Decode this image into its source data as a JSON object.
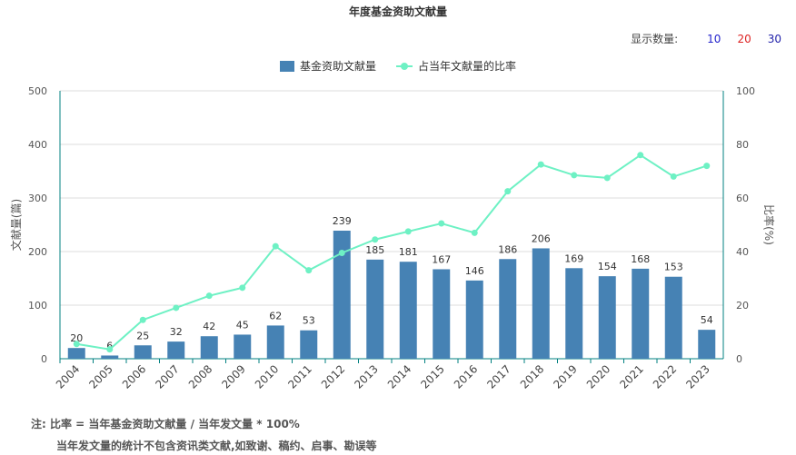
{
  "title": "年度基金资助文献量",
  "display_count": {
    "label": "显示数量:",
    "options": [
      {
        "label": "10",
        "color": "#2222cc"
      },
      {
        "label": "20",
        "color": "#dd2222"
      },
      {
        "label": "30",
        "color": "#2222aa"
      }
    ]
  },
  "notes": {
    "line1": "注:  比率 = 当年基金资助文献量 / 当年发文量 * 100%",
    "line2": "当年发文量的统计不包含资讯类文献,如致谢、稿约、启事、勘误等"
  },
  "colors": {
    "bar": "#4682b4",
    "line": "#6ef1c4",
    "axis": "#008080",
    "grid": "#dddddd"
  },
  "chart_data": {
    "type": "bar",
    "title": "年度基金资助文献量",
    "categories": [
      "2004",
      "2005",
      "2006",
      "2007",
      "2008",
      "2009",
      "2010",
      "2011",
      "2012",
      "2013",
      "2014",
      "2015",
      "2016",
      "2017",
      "2018",
      "2019",
      "2020",
      "2021",
      "2022",
      "2023"
    ],
    "series": [
      {
        "name": "基金资助文献量",
        "type": "bar",
        "axis": "left",
        "values": [
          20,
          6,
          25,
          32,
          42,
          45,
          62,
          53,
          239,
          185,
          181,
          167,
          146,
          186,
          206,
          169,
          154,
          168,
          153,
          54
        ]
      },
      {
        "name": "占当年文献量的比率",
        "type": "line",
        "axis": "right",
        "values": [
          5.5,
          3.5,
          14.5,
          19,
          23.5,
          26.5,
          42,
          33,
          39.5,
          44.5,
          47.5,
          50.5,
          47,
          62.5,
          72.5,
          68.5,
          67.5,
          76,
          68,
          72
        ]
      }
    ],
    "ylabel": "文献量(篇)",
    "y2label": "比率(%)",
    "ylim": [
      0,
      500
    ],
    "y2lim": [
      0,
      100
    ],
    "yticks": [
      0,
      100,
      200,
      300,
      400,
      500
    ],
    "y2ticks": [
      0,
      20,
      40,
      60,
      80,
      100
    ],
    "grid": true,
    "legend_position": "top-center"
  }
}
